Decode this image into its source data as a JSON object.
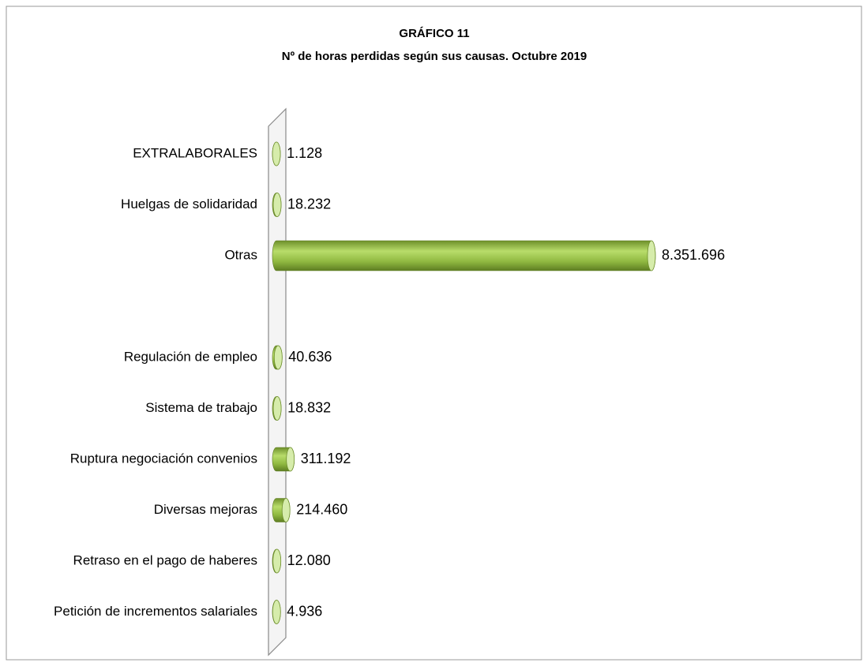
{
  "chart_data": {
    "type": "bar",
    "orientation": "horizontal",
    "title": "GRÁFICO 11",
    "subtitle": "Nº de horas perdidas según sus causas. Octubre 2019",
    "categories": [
      "EXTRALABORALES",
      "Huelgas de solidaridad",
      "Otras",
      null,
      "Regulación de empleo",
      "Sistema de trabajo",
      "Ruptura negociación convenios",
      "Diversas mejoras",
      "Retraso en el pago de haberes",
      "Petición de incrementos salariales"
    ],
    "values": [
      1128,
      18232,
      8351696,
      null,
      40636,
      18832,
      311192,
      214460,
      12080,
      4936
    ],
    "value_labels": [
      "1.128",
      "18.232",
      "8.351.696",
      null,
      "40.636",
      "18.832",
      "311.192",
      "214.460",
      "12.080",
      "4.936"
    ],
    "color": "#8fb840"
  }
}
